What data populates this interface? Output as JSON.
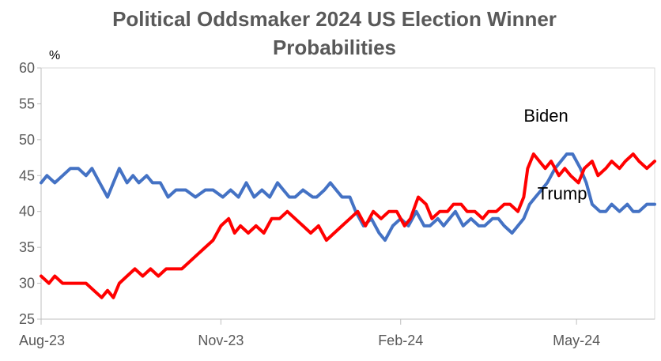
{
  "chart_data": {
    "type": "line",
    "title": "Political Oddsmaker 2024 US Election Winner Probabilities",
    "title_lines": [
      "Political Oddsmaker 2024 US Election Winner",
      "Probabilities"
    ],
    "ylabel": "%",
    "xlabel": "",
    "ylim": [
      25,
      60
    ],
    "yticks": [
      25,
      30,
      35,
      40,
      45,
      50,
      55,
      60
    ],
    "x_tick_labels": [
      "Aug-23",
      "Nov-23",
      "Feb-24",
      "May-24"
    ],
    "x_tick_dates": [
      "2023-08-01",
      "2023-11-01",
      "2024-02-01",
      "2024-05-01"
    ],
    "xlim": [
      "2023-08-01",
      "2024-06-10"
    ],
    "grid": false,
    "legend": "inline labels",
    "series": [
      {
        "name": "Biden",
        "color": "#4472C4",
        "points": [
          [
            "2023-08-01",
            44
          ],
          [
            "2023-08-04",
            45
          ],
          [
            "2023-08-08",
            44
          ],
          [
            "2023-08-12",
            45
          ],
          [
            "2023-08-16",
            46
          ],
          [
            "2023-08-20",
            46
          ],
          [
            "2023-08-24",
            45
          ],
          [
            "2023-08-27",
            46
          ],
          [
            "2023-08-31",
            44
          ],
          [
            "2023-09-04",
            42
          ],
          [
            "2023-09-07",
            44
          ],
          [
            "2023-09-10",
            46
          ],
          [
            "2023-09-14",
            44
          ],
          [
            "2023-09-17",
            45
          ],
          [
            "2023-09-20",
            44
          ],
          [
            "2023-09-24",
            45
          ],
          [
            "2023-09-27",
            44
          ],
          [
            "2023-10-01",
            44
          ],
          [
            "2023-10-05",
            42
          ],
          [
            "2023-10-09",
            43
          ],
          [
            "2023-10-14",
            43
          ],
          [
            "2023-10-19",
            42
          ],
          [
            "2023-10-24",
            43
          ],
          [
            "2023-10-28",
            43
          ],
          [
            "2023-11-02",
            42
          ],
          [
            "2023-11-06",
            43
          ],
          [
            "2023-11-10",
            42
          ],
          [
            "2023-11-14",
            44
          ],
          [
            "2023-11-18",
            42
          ],
          [
            "2023-11-22",
            43
          ],
          [
            "2023-11-26",
            42
          ],
          [
            "2023-11-30",
            44
          ],
          [
            "2023-12-03",
            43
          ],
          [
            "2023-12-06",
            42
          ],
          [
            "2023-12-09",
            42
          ],
          [
            "2023-12-13",
            43
          ],
          [
            "2023-12-18",
            42
          ],
          [
            "2023-12-20",
            42
          ],
          [
            "2023-12-24",
            43
          ],
          [
            "2023-12-27",
            44
          ],
          [
            "2023-12-30",
            43
          ],
          [
            "2024-01-02",
            42
          ],
          [
            "2024-01-06",
            42
          ],
          [
            "2024-01-09",
            40
          ],
          [
            "2024-01-13",
            38
          ],
          [
            "2024-01-17",
            39
          ],
          [
            "2024-01-21",
            37
          ],
          [
            "2024-01-24",
            36
          ],
          [
            "2024-01-28",
            38
          ],
          [
            "2024-02-01",
            39
          ],
          [
            "2024-02-05",
            38
          ],
          [
            "2024-02-09",
            40
          ],
          [
            "2024-02-13",
            38
          ],
          [
            "2024-02-16",
            38
          ],
          [
            "2024-02-20",
            39
          ],
          [
            "2024-02-23",
            38
          ],
          [
            "2024-02-26",
            39
          ],
          [
            "2024-02-29",
            40
          ],
          [
            "2024-03-04",
            38
          ],
          [
            "2024-03-08",
            39
          ],
          [
            "2024-03-12",
            38
          ],
          [
            "2024-03-15",
            38
          ],
          [
            "2024-03-19",
            39
          ],
          [
            "2024-03-22",
            39
          ],
          [
            "2024-03-25",
            38
          ],
          [
            "2024-03-29",
            37
          ],
          [
            "2024-04-01",
            38
          ],
          [
            "2024-04-04",
            39
          ],
          [
            "2024-04-07",
            41
          ],
          [
            "2024-04-10",
            42
          ],
          [
            "2024-04-13",
            43
          ],
          [
            "2024-04-16",
            44
          ],
          [
            "2024-04-20",
            46
          ],
          [
            "2024-04-23",
            47
          ],
          [
            "2024-04-26",
            48
          ],
          [
            "2024-04-29",
            48
          ],
          [
            "2024-05-03",
            46
          ],
          [
            "2024-05-06",
            44
          ],
          [
            "2024-05-09",
            41
          ],
          [
            "2024-05-13",
            40
          ],
          [
            "2024-05-16",
            40
          ],
          [
            "2024-05-19",
            41
          ],
          [
            "2024-05-23",
            40
          ],
          [
            "2024-05-27",
            41
          ],
          [
            "2024-05-30",
            40
          ],
          [
            "2024-06-02",
            40
          ],
          [
            "2024-06-06",
            41
          ],
          [
            "2024-06-10",
            41
          ]
        ]
      },
      {
        "name": "Trump",
        "color": "#FF0000",
        "points": [
          [
            "2023-08-01",
            31
          ],
          [
            "2023-08-05",
            30
          ],
          [
            "2023-08-08",
            31
          ],
          [
            "2023-08-12",
            30
          ],
          [
            "2023-08-16",
            30
          ],
          [
            "2023-08-20",
            30
          ],
          [
            "2023-08-24",
            30
          ],
          [
            "2023-08-28",
            29
          ],
          [
            "2023-09-01",
            28
          ],
          [
            "2023-09-04",
            29
          ],
          [
            "2023-09-07",
            28
          ],
          [
            "2023-09-10",
            30
          ],
          [
            "2023-09-14",
            31
          ],
          [
            "2023-09-18",
            32
          ],
          [
            "2023-09-22",
            31
          ],
          [
            "2023-09-26",
            32
          ],
          [
            "2023-09-30",
            31
          ],
          [
            "2023-10-04",
            32
          ],
          [
            "2023-10-08",
            32
          ],
          [
            "2023-10-12",
            32
          ],
          [
            "2023-10-16",
            33
          ],
          [
            "2023-10-20",
            34
          ],
          [
            "2023-10-24",
            35
          ],
          [
            "2023-10-28",
            36
          ],
          [
            "2023-11-01",
            38
          ],
          [
            "2023-11-05",
            39
          ],
          [
            "2023-11-08",
            37
          ],
          [
            "2023-11-11",
            38
          ],
          [
            "2023-11-15",
            37
          ],
          [
            "2023-11-19",
            38
          ],
          [
            "2023-11-23",
            37
          ],
          [
            "2023-11-27",
            39
          ],
          [
            "2023-12-01",
            39
          ],
          [
            "2023-12-05",
            40
          ],
          [
            "2023-12-09",
            39
          ],
          [
            "2023-12-13",
            38
          ],
          [
            "2023-12-17",
            37
          ],
          [
            "2023-12-21",
            38
          ],
          [
            "2023-12-25",
            36
          ],
          [
            "2023-12-29",
            37
          ],
          [
            "2024-01-02",
            38
          ],
          [
            "2024-01-06",
            39
          ],
          [
            "2024-01-10",
            40
          ],
          [
            "2024-01-14",
            38
          ],
          [
            "2024-01-18",
            40
          ],
          [
            "2024-01-22",
            39
          ],
          [
            "2024-01-26",
            40
          ],
          [
            "2024-01-30",
            40
          ],
          [
            "2024-02-03",
            38
          ],
          [
            "2024-02-06",
            39
          ],
          [
            "2024-02-10",
            42
          ],
          [
            "2024-02-14",
            41
          ],
          [
            "2024-02-17",
            39
          ],
          [
            "2024-02-21",
            40
          ],
          [
            "2024-02-25",
            40
          ],
          [
            "2024-02-28",
            41
          ],
          [
            "2024-03-03",
            41
          ],
          [
            "2024-03-06",
            40
          ],
          [
            "2024-03-10",
            40
          ],
          [
            "2024-03-14",
            39
          ],
          [
            "2024-03-17",
            40
          ],
          [
            "2024-03-21",
            40
          ],
          [
            "2024-03-25",
            41
          ],
          [
            "2024-03-28",
            41
          ],
          [
            "2024-04-01",
            40
          ],
          [
            "2024-04-04",
            42
          ],
          [
            "2024-04-06",
            46
          ],
          [
            "2024-04-09",
            48
          ],
          [
            "2024-04-12",
            47
          ],
          [
            "2024-04-15",
            46
          ],
          [
            "2024-04-18",
            47
          ],
          [
            "2024-04-22",
            45
          ],
          [
            "2024-04-25",
            46
          ],
          [
            "2024-04-28",
            45
          ],
          [
            "2024-05-02",
            44
          ],
          [
            "2024-05-05",
            46
          ],
          [
            "2024-05-09",
            47
          ],
          [
            "2024-05-12",
            45
          ],
          [
            "2024-05-16",
            46
          ],
          [
            "2024-05-19",
            47
          ],
          [
            "2024-05-23",
            46
          ],
          [
            "2024-05-26",
            47
          ],
          [
            "2024-05-30",
            48
          ],
          [
            "2024-06-02",
            47
          ],
          [
            "2024-06-06",
            46
          ],
          [
            "2024-06-10",
            47
          ]
        ]
      }
    ]
  }
}
